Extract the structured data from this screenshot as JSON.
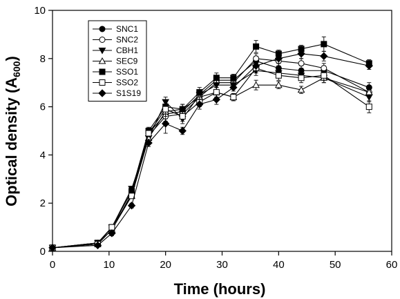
{
  "chart_data": {
    "type": "line",
    "xlabel": "Time (hours)",
    "ylabel_main": "Optical density (A",
    "ylabel_sub": "600",
    "ylabel_close": ")",
    "xlim": [
      0,
      60
    ],
    "ylim": [
      0,
      10
    ],
    "xticks": [
      0,
      10,
      20,
      30,
      40,
      50,
      60
    ],
    "yticks": [
      0,
      2,
      4,
      6,
      8,
      10
    ],
    "grid": false,
    "legend_position": "top-left",
    "x": [
      0,
      8,
      10.5,
      14,
      17,
      20,
      23,
      26,
      29,
      32,
      36,
      40,
      44,
      48,
      56
    ],
    "series": [
      {
        "name": "SNC1",
        "marker": "circle-filled",
        "values": [
          0.15,
          0.35,
          1.0,
          2.5,
          4.9,
          5.7,
          5.8,
          6.5,
          7.1,
          7.1,
          7.9,
          7.6,
          7.5,
          7.5,
          6.8
        ],
        "errors": [
          0.05,
          0.05,
          0.1,
          0.1,
          0.15,
          0.2,
          0.2,
          0.2,
          0.2,
          0.15,
          0.2,
          0.2,
          0.2,
          0.2,
          0.2
        ]
      },
      {
        "name": "SNC2",
        "marker": "circle-open",
        "values": [
          0.15,
          0.3,
          0.9,
          2.4,
          4.8,
          5.6,
          5.7,
          6.4,
          7.0,
          7.0,
          8.0,
          7.9,
          7.8,
          7.6,
          6.6
        ],
        "errors": [
          0.05,
          0.05,
          0.1,
          0.1,
          0.15,
          0.2,
          0.2,
          0.2,
          0.2,
          0.15,
          0.2,
          0.2,
          0.2,
          0.2,
          0.2
        ]
      },
      {
        "name": "CBH1",
        "marker": "triangle-down-filled",
        "values": [
          0.15,
          0.35,
          1.0,
          2.6,
          4.7,
          6.2,
          5.5,
          6.5,
          6.9,
          6.9,
          7.5,
          7.4,
          7.3,
          7.2,
          6.4
        ],
        "errors": [
          0.05,
          0.05,
          0.1,
          0.1,
          0.15,
          0.2,
          0.2,
          0.2,
          0.2,
          0.15,
          0.2,
          0.2,
          0.2,
          0.2,
          0.2
        ]
      },
      {
        "name": "SEC9",
        "marker": "triangle-up-open",
        "values": [
          0.15,
          0.3,
          0.9,
          2.3,
          4.7,
          5.8,
          5.9,
          6.4,
          6.6,
          6.4,
          6.9,
          6.9,
          6.7,
          7.2,
          6.6
        ],
        "errors": [
          0.05,
          0.05,
          0.1,
          0.1,
          0.15,
          0.2,
          0.2,
          0.2,
          0.2,
          0.15,
          0.2,
          0.15,
          0.15,
          0.2,
          0.2
        ]
      },
      {
        "name": "SSO1",
        "marker": "square-filled",
        "values": [
          0.15,
          0.35,
          1.0,
          2.5,
          5.0,
          6.0,
          5.9,
          6.6,
          7.2,
          7.2,
          8.5,
          8.2,
          8.4,
          8.6,
          7.8
        ],
        "errors": [
          0.05,
          0.05,
          0.1,
          0.1,
          0.15,
          0.2,
          0.2,
          0.2,
          0.2,
          0.15,
          0.25,
          0.15,
          0.15,
          0.3,
          0.15
        ]
      },
      {
        "name": "SSO2",
        "marker": "square-open",
        "values": [
          0.15,
          0.3,
          1.0,
          2.3,
          4.9,
          5.9,
          5.6,
          6.2,
          6.6,
          6.4,
          7.6,
          7.3,
          7.2,
          7.3,
          6.0
        ],
        "errors": [
          0.05,
          0.05,
          0.1,
          0.1,
          0.15,
          0.2,
          0.2,
          0.2,
          0.2,
          0.15,
          0.2,
          0.2,
          0.2,
          0.2,
          0.25
        ]
      },
      {
        "name": "S1S19",
        "marker": "diamond-filled",
        "values": [
          0.15,
          0.25,
          0.75,
          1.9,
          4.5,
          5.3,
          5.0,
          6.1,
          6.3,
          6.8,
          7.7,
          8.0,
          8.2,
          8.1,
          7.7
        ],
        "errors": [
          0.05,
          0.05,
          0.1,
          0.1,
          0.15,
          0.4,
          0.15,
          0.2,
          0.2,
          0.15,
          0.2,
          0.2,
          0.2,
          0.2,
          0.15
        ]
      }
    ]
  }
}
